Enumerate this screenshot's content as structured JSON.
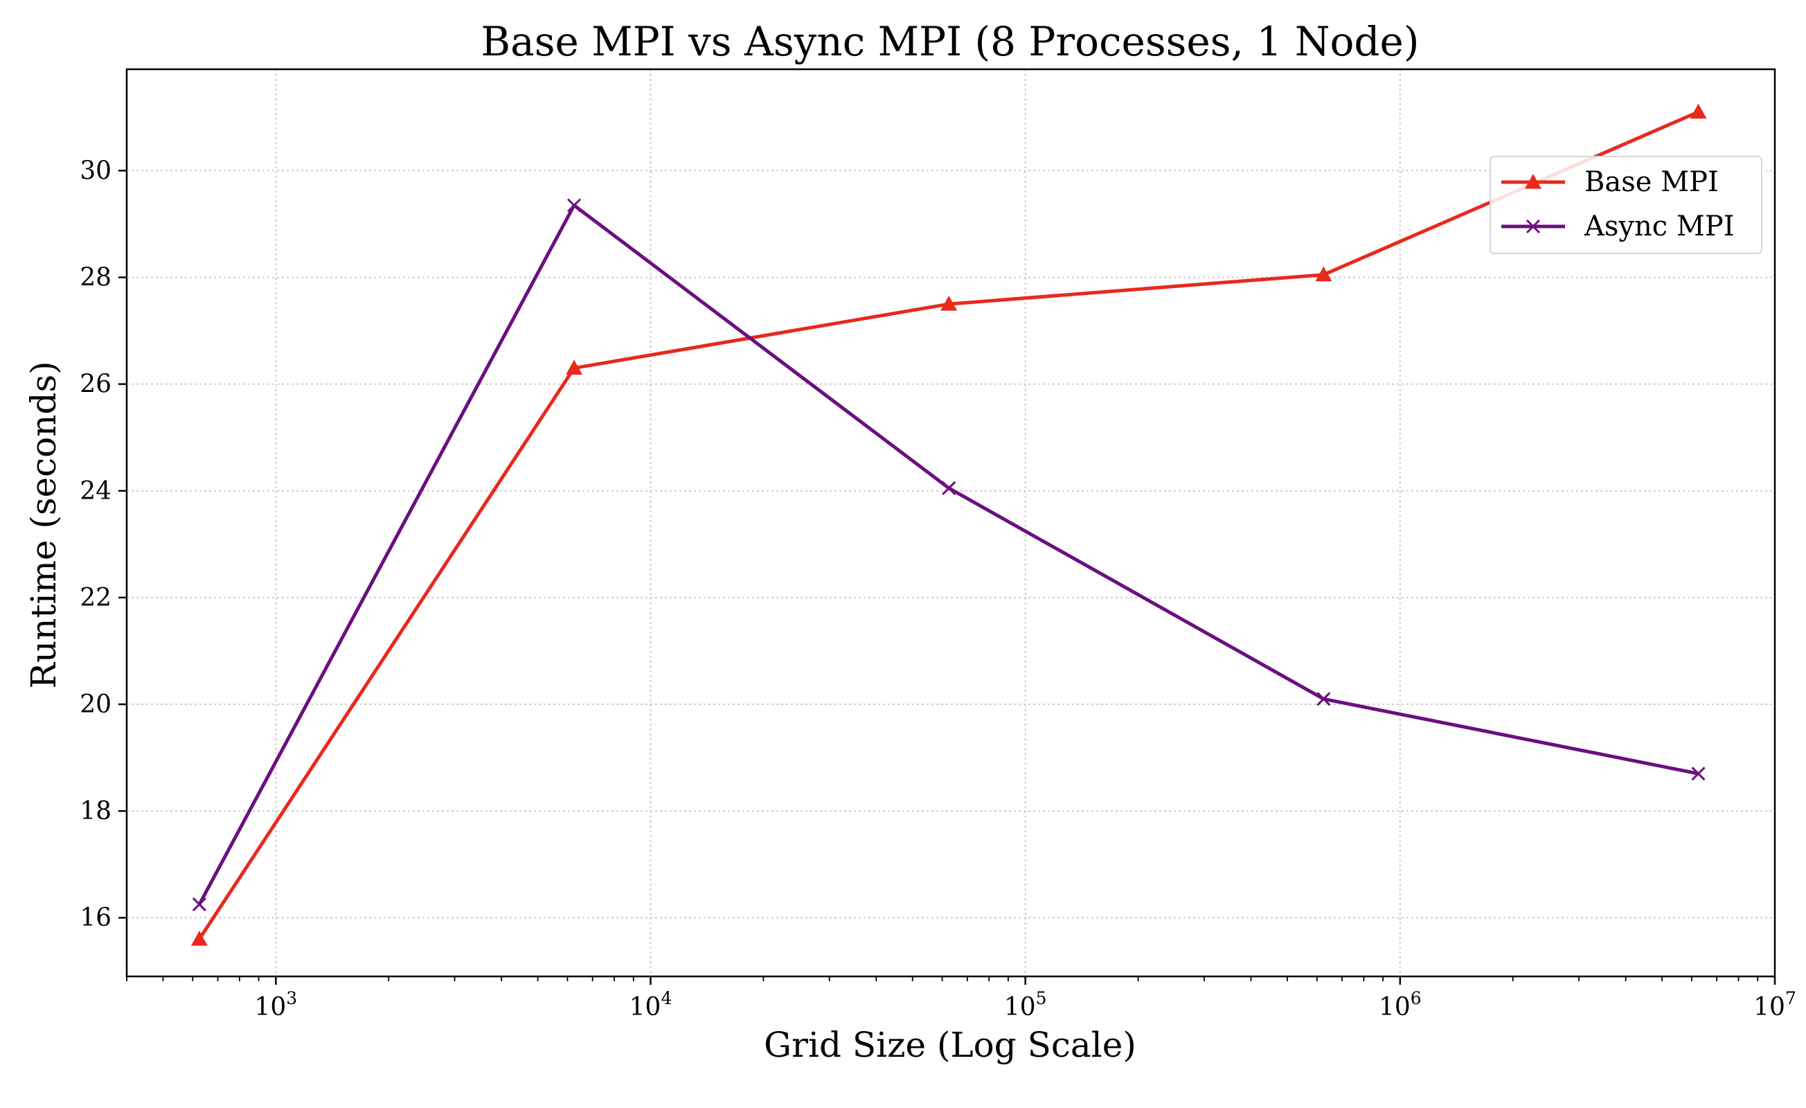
{
  "chart_data": {
    "type": "line",
    "title": "Base MPI vs Async MPI (8 Processes, 1 Node)",
    "xlabel": "Grid Size (Log Scale)",
    "ylabel": "Runtime (seconds)",
    "xscale": "log",
    "xlim": [
      400,
      10000000
    ],
    "ylim": [
      14.9,
      31.9
    ],
    "grid": true,
    "legend_position": "upper-right",
    "x_ticks": [
      {
        "base": "10",
        "exp": "3",
        "value": 1000
      },
      {
        "base": "10",
        "exp": "4",
        "value": 10000
      },
      {
        "base": "10",
        "exp": "5",
        "value": 100000
      },
      {
        "base": "10",
        "exp": "6",
        "value": 1000000
      },
      {
        "base": "10",
        "exp": "7",
        "value": 10000000
      }
    ],
    "y_ticks": [
      16,
      18,
      20,
      22,
      24,
      26,
      28,
      30
    ],
    "x": [
      625,
      6250,
      62500,
      625000,
      6250000
    ],
    "series": [
      {
        "name": "Base MPI",
        "color": "#e8291c",
        "marker": "triangle",
        "values": [
          15.6,
          26.3,
          27.5,
          28.05,
          31.1
        ]
      },
      {
        "name": "Async MPI",
        "color": "#6b0f7f",
        "marker": "x",
        "values": [
          16.25,
          29.35,
          24.05,
          20.1,
          18.7
        ]
      }
    ]
  }
}
